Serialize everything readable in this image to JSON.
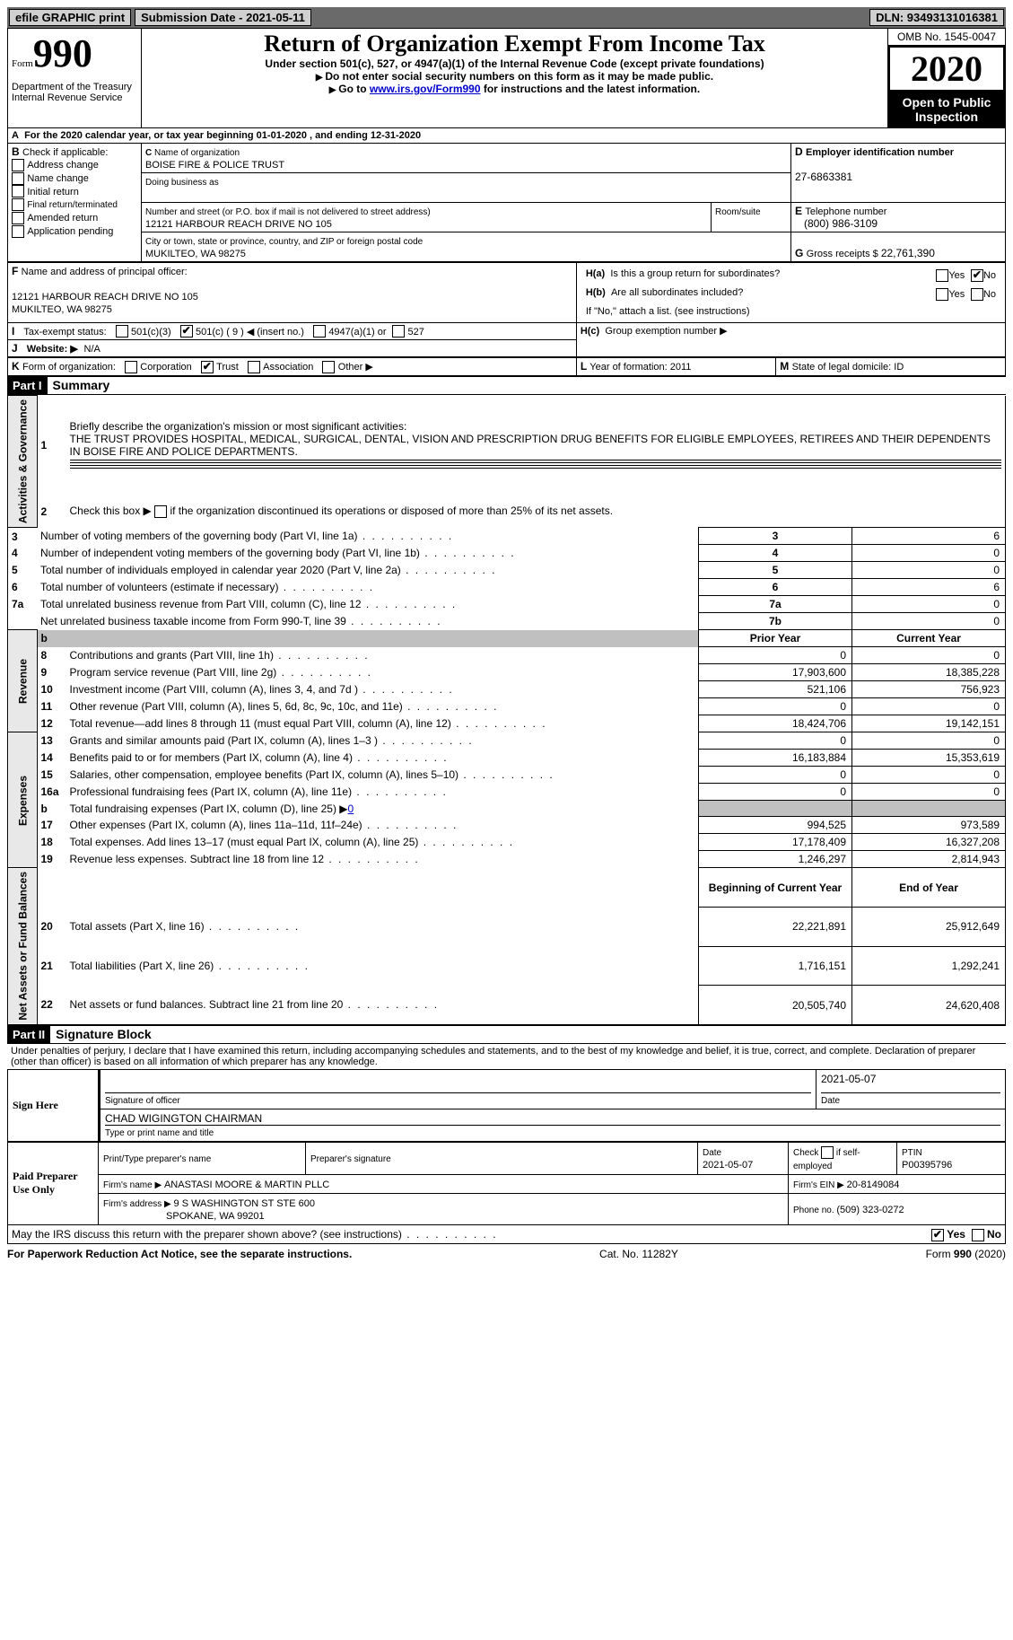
{
  "topbar": {
    "efile": "efile GRAPHIC print",
    "submission_label": "Submission Date - 2021-05-11",
    "dln": "DLN: 93493131016381"
  },
  "header": {
    "form_word": "Form",
    "form_num": "990",
    "dept": "Department of the Treasury\nInternal Revenue Service",
    "title": "Return of Organization Exempt From Income Tax",
    "subtitle": "Under section 501(c), 527, or 4947(a)(1) of the Internal Revenue Code (except private foundations)",
    "instr1": "Do not enter social security numbers on this form as it may be made public.",
    "instr2_pre": "Go to ",
    "instr2_link": "www.irs.gov/Form990",
    "instr2_post": " for instructions and the latest information.",
    "omb": "OMB No. 1545-0047",
    "year": "2020",
    "open": "Open to Public Inspection"
  },
  "period": {
    "text_a": "For the 2020 calendar year, or tax year beginning ",
    "begin": "01-01-2020",
    "text_b": " , and ending ",
    "end": "12-31-2020"
  },
  "boxB": {
    "label": "Check if applicable:",
    "items": [
      "Address change",
      "Name change",
      "Initial return",
      "Final return/terminated",
      "Amended return",
      "Application pending"
    ]
  },
  "boxC": {
    "name_label": "Name of organization",
    "name": "BOISE FIRE & POLICE TRUST",
    "dba_label": "Doing business as",
    "addr_label": "Number and street (or P.O. box if mail is not delivered to street address)",
    "room_label": "Room/suite",
    "addr": "12121 HARBOUR REACH DRIVE NO 105",
    "city_label": "City or town, state or province, country, and ZIP or foreign postal code",
    "city": "MUKILTEO, WA  98275"
  },
  "boxD": {
    "label": "Employer identification number",
    "ein": "27-6863381"
  },
  "boxE": {
    "label": "Telephone number",
    "phone": "(800) 986-3109"
  },
  "boxG": {
    "label": "Gross receipts $ ",
    "val": "22,761,390"
  },
  "boxF": {
    "label": "Name and address of principal officer:",
    "line1": "12121 HARBOUR REACH DRIVE NO 105",
    "line2": "MUKILTEO, WA  98275"
  },
  "boxH": {
    "a": "Is this a group return for subordinates?",
    "b": "Are all subordinates included?",
    "b_note": "If \"No,\" attach a list. (see instructions)",
    "c": "Group exemption number ▶",
    "yes": "Yes",
    "no": "No"
  },
  "rowI": {
    "label": "Tax-exempt status:",
    "opts": [
      "501(c)(3)",
      "501(c) ( 9 ) ◀ (insert no.)",
      "4947(a)(1) or",
      "527"
    ]
  },
  "rowJ": {
    "label": "Website: ▶",
    "val": "N/A"
  },
  "rowK": {
    "label": "Form of organization:",
    "opts": [
      "Corporation",
      "Trust",
      "Association",
      "Other ▶"
    ]
  },
  "rowL": {
    "label": "Year of formation: ",
    "val": "2011"
  },
  "rowM": {
    "label": "State of legal domicile: ",
    "val": "ID"
  },
  "part1": {
    "header": "Part I",
    "title": "Summary",
    "q1": "Briefly describe the organization's mission or most significant activities:",
    "mission": "THE TRUST PROVIDES HOSPITAL, MEDICAL, SURGICAL, DENTAL, VISION AND PRESCRIPTION DRUG BENEFITS FOR ELIGIBLE EMPLOYEES, RETIREES AND THEIR DEPENDENTS IN BOISE FIRE AND POLICE DEPARTMENTS.",
    "q2": "Check this box ▶        if the organization discontinued its operations or disposed of more than 25% of its net assets.",
    "lines_gov": [
      {
        "n": "3",
        "t": "Number of voting members of the governing body (Part VI, line 1a)",
        "lab": "3",
        "v": "6"
      },
      {
        "n": "4",
        "t": "Number of independent voting members of the governing body (Part VI, line 1b)",
        "lab": "4",
        "v": "0"
      },
      {
        "n": "5",
        "t": "Total number of individuals employed in calendar year 2020 (Part V, line 2a)",
        "lab": "5",
        "v": "0"
      },
      {
        "n": "6",
        "t": "Total number of volunteers (estimate if necessary)",
        "lab": "6",
        "v": "6"
      },
      {
        "n": "7a",
        "t": "Total unrelated business revenue from Part VIII, column (C), line 12",
        "lab": "7a",
        "v": "0"
      },
      {
        "n": "",
        "t": "Net unrelated business taxable income from Form 990-T, line 39",
        "lab": "7b",
        "v": "0"
      }
    ],
    "col_prior": "Prior Year",
    "col_curr": "Current Year",
    "rev": [
      {
        "n": "8",
        "t": "Contributions and grants (Part VIII, line 1h)",
        "p": "0",
        "c": "0"
      },
      {
        "n": "9",
        "t": "Program service revenue (Part VIII, line 2g)",
        "p": "17,903,600",
        "c": "18,385,228"
      },
      {
        "n": "10",
        "t": "Investment income (Part VIII, column (A), lines 3, 4, and 7d )",
        "p": "521,106",
        "c": "756,923"
      },
      {
        "n": "11",
        "t": "Other revenue (Part VIII, column (A), lines 5, 6d, 8c, 9c, 10c, and 11e)",
        "p": "0",
        "c": "0"
      },
      {
        "n": "12",
        "t": "Total revenue—add lines 8 through 11 (must equal Part VIII, column (A), line 12)",
        "p": "18,424,706",
        "c": "19,142,151"
      }
    ],
    "exp": [
      {
        "n": "13",
        "t": "Grants and similar amounts paid (Part IX, column (A), lines 1–3 )",
        "p": "0",
        "c": "0"
      },
      {
        "n": "14",
        "t": "Benefits paid to or for members (Part IX, column (A), line 4)",
        "p": "16,183,884",
        "c": "15,353,619"
      },
      {
        "n": "15",
        "t": "Salaries, other compensation, employee benefits (Part IX, column (A), lines 5–10)",
        "p": "0",
        "c": "0"
      },
      {
        "n": "16a",
        "t": "Professional fundraising fees (Part IX, column (A), line 11e)",
        "p": "0",
        "c": "0"
      },
      {
        "n": "b",
        "t": "Total fundraising expenses (Part IX, column (D), line 25) ▶",
        "p": "",
        "c": "",
        "link": "0"
      },
      {
        "n": "17",
        "t": "Other expenses (Part IX, column (A), lines 11a–11d, 11f–24e)",
        "p": "994,525",
        "c": "973,589"
      },
      {
        "n": "18",
        "t": "Total expenses. Add lines 13–17 (must equal Part IX, column (A), line 25)",
        "p": "17,178,409",
        "c": "16,327,208"
      },
      {
        "n": "19",
        "t": "Revenue less expenses. Subtract line 18 from line 12",
        "p": "1,246,297",
        "c": "2,814,943"
      }
    ],
    "col_begin": "Beginning of Current Year",
    "col_end": "End of Year",
    "net": [
      {
        "n": "20",
        "t": "Total assets (Part X, line 16)",
        "p": "22,221,891",
        "c": "25,912,649"
      },
      {
        "n": "21",
        "t": "Total liabilities (Part X, line 26)",
        "p": "1,716,151",
        "c": "1,292,241"
      },
      {
        "n": "22",
        "t": "Net assets or fund balances. Subtract line 21 from line 20",
        "p": "20,505,740",
        "c": "24,620,408"
      }
    ],
    "vlab_gov": "Activities & Governance",
    "vlab_rev": "Revenue",
    "vlab_exp": "Expenses",
    "vlab_net": "Net Assets or Fund Balances"
  },
  "part2": {
    "header": "Part II",
    "title": "Signature Block",
    "decl": "Under penalties of perjury, I declare that I have examined this return, including accompanying schedules and statements, and to the best of my knowledge and belief, it is true, correct, and complete. Declaration of preparer (other than officer) is based on all information of which preparer has any knowledge.",
    "sign_here": "Sign Here",
    "sig_officer": "Signature of officer",
    "sig_date": "2021-05-07",
    "date_label": "Date",
    "officer_name": "CHAD WIGINGTON CHAIRMAN",
    "type_label": "Type or print name and title",
    "paid": "Paid Preparer Use Only",
    "pt_name_label": "Print/Type preparer's name",
    "pt_sig_label": "Preparer's signature",
    "pt_date_label": "Date",
    "pt_date": "2021-05-07",
    "pt_check": "Check         if self-employed",
    "ptin_label": "PTIN",
    "ptin": "P00395796",
    "firm_name_label": "Firm's name    ▶ ",
    "firm_name": "ANASTASI MOORE & MARTIN PLLC",
    "firm_ein_label": "Firm's EIN ▶ ",
    "firm_ein": "20-8149084",
    "firm_addr_label": "Firm's address ▶ ",
    "firm_addr": "9 S WASHINGTON ST STE 600",
    "firm_city": "SPOKANE, WA  99201",
    "firm_phone_label": "Phone no. ",
    "firm_phone": "(509) 323-0272",
    "discuss": "May the IRS discuss this return with the preparer shown above? (see instructions)"
  },
  "footer": {
    "left": "For Paperwork Reduction Act Notice, see the separate instructions.",
    "mid": "Cat. No. 11282Y",
    "right": "Form 990 (2020)"
  }
}
